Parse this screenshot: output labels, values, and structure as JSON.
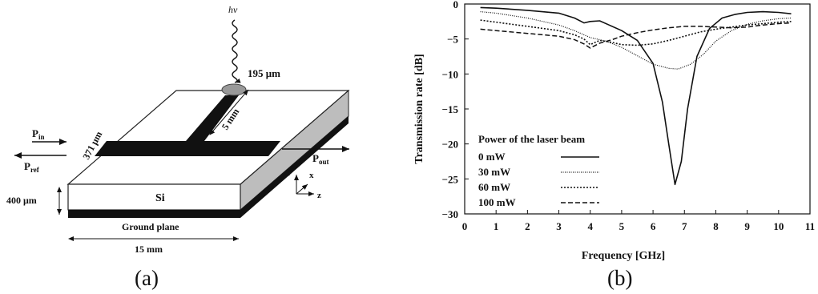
{
  "diagram": {
    "hv": "hν",
    "width_label": "195 μm",
    "line_width_label": "371 μm",
    "stub_label": "5 mm",
    "p_in": "P",
    "p_in_sub": "in",
    "p_ref": "P",
    "p_ref_sub": "ref",
    "p_out": "P",
    "p_out_sub": "out",
    "axis_y": "y",
    "axis_x": "x",
    "axis_z": "z",
    "si_label": "Si",
    "thickness_label": "400 μm",
    "ground_label": "Ground plane",
    "length_label": "15 mm",
    "caption": "(a)"
  },
  "chart_caption": "(b)",
  "chart_data": {
    "type": "line",
    "xlabel": "Frequency [GHz]",
    "ylabel": "Transmission rate [dB]",
    "xlim": [
      0,
      11
    ],
    "ylim": [
      -30,
      0
    ],
    "xticks": [
      0,
      1,
      2,
      3,
      4,
      5,
      6,
      7,
      8,
      9,
      10,
      11
    ],
    "yticks": [
      0,
      -5,
      -10,
      -15,
      -20,
      -25,
      -30
    ],
    "legend_title": "Power of the laser beam",
    "legend_position": "bottom-left",
    "grid": false,
    "series": [
      {
        "name": "0 mW",
        "style": "solid",
        "x": [
          0.5,
          1,
          2,
          3,
          3.5,
          3.8,
          4,
          4.3,
          4.6,
          5,
          5.5,
          6,
          6.3,
          6.5,
          6.7,
          6.9,
          7.1,
          7.4,
          7.8,
          8.2,
          8.6,
          9,
          9.5,
          10,
          10.4
        ],
        "y": [
          -0.5,
          -0.6,
          -0.9,
          -1.3,
          -2.0,
          -2.7,
          -2.5,
          -2.4,
          -3.0,
          -3.8,
          -5.2,
          -8.5,
          -14.0,
          -20.0,
          -25.8,
          -22.5,
          -15.0,
          -7.5,
          -3.5,
          -2.0,
          -1.5,
          -1.2,
          -1.1,
          -1.2,
          -1.4
        ]
      },
      {
        "name": "30 mW",
        "style": "dotted-fine",
        "x": [
          0.5,
          1,
          2,
          3,
          3.5,
          4,
          4.5,
          5,
          5.5,
          6,
          6.5,
          6.8,
          7.2,
          7.6,
          8,
          8.5,
          9,
          9.5,
          10,
          10.4
        ],
        "y": [
          -1.1,
          -1.3,
          -2.0,
          -3.0,
          -3.8,
          -4.8,
          -5.3,
          -6.2,
          -7.4,
          -8.6,
          -9.2,
          -9.3,
          -8.6,
          -7.2,
          -5.3,
          -3.8,
          -2.9,
          -2.4,
          -2.1,
          -2.0
        ]
      },
      {
        "name": "60 mW",
        "style": "dotted",
        "x": [
          0.5,
          1,
          2,
          3,
          3.5,
          3.8,
          4,
          4.3,
          4.7,
          5,
          5.5,
          6,
          6.5,
          7,
          7.5,
          8,
          8.5,
          9,
          9.5,
          10,
          10.4
        ],
        "y": [
          -2.3,
          -2.6,
          -3.2,
          -3.8,
          -4.4,
          -5.0,
          -5.8,
          -5.2,
          -5.5,
          -5.8,
          -5.9,
          -5.7,
          -5.2,
          -4.6,
          -4.0,
          -3.6,
          -3.3,
          -3.0,
          -2.8,
          -2.6,
          -2.5
        ]
      },
      {
        "name": "100 mW",
        "style": "dashed",
        "x": [
          0.5,
          1,
          2,
          3,
          3.5,
          3.8,
          4,
          4.3,
          4.7,
          5,
          5.5,
          6,
          6.5,
          7,
          7.5,
          8,
          8.5,
          9,
          9.5,
          10,
          10.4
        ],
        "y": [
          -3.6,
          -3.8,
          -4.2,
          -4.6,
          -5.1,
          -5.7,
          -6.3,
          -5.6,
          -5.1,
          -4.6,
          -4.1,
          -3.7,
          -3.4,
          -3.2,
          -3.2,
          -3.3,
          -3.4,
          -3.3,
          -3.0,
          -2.8,
          -2.7
        ]
      }
    ]
  }
}
